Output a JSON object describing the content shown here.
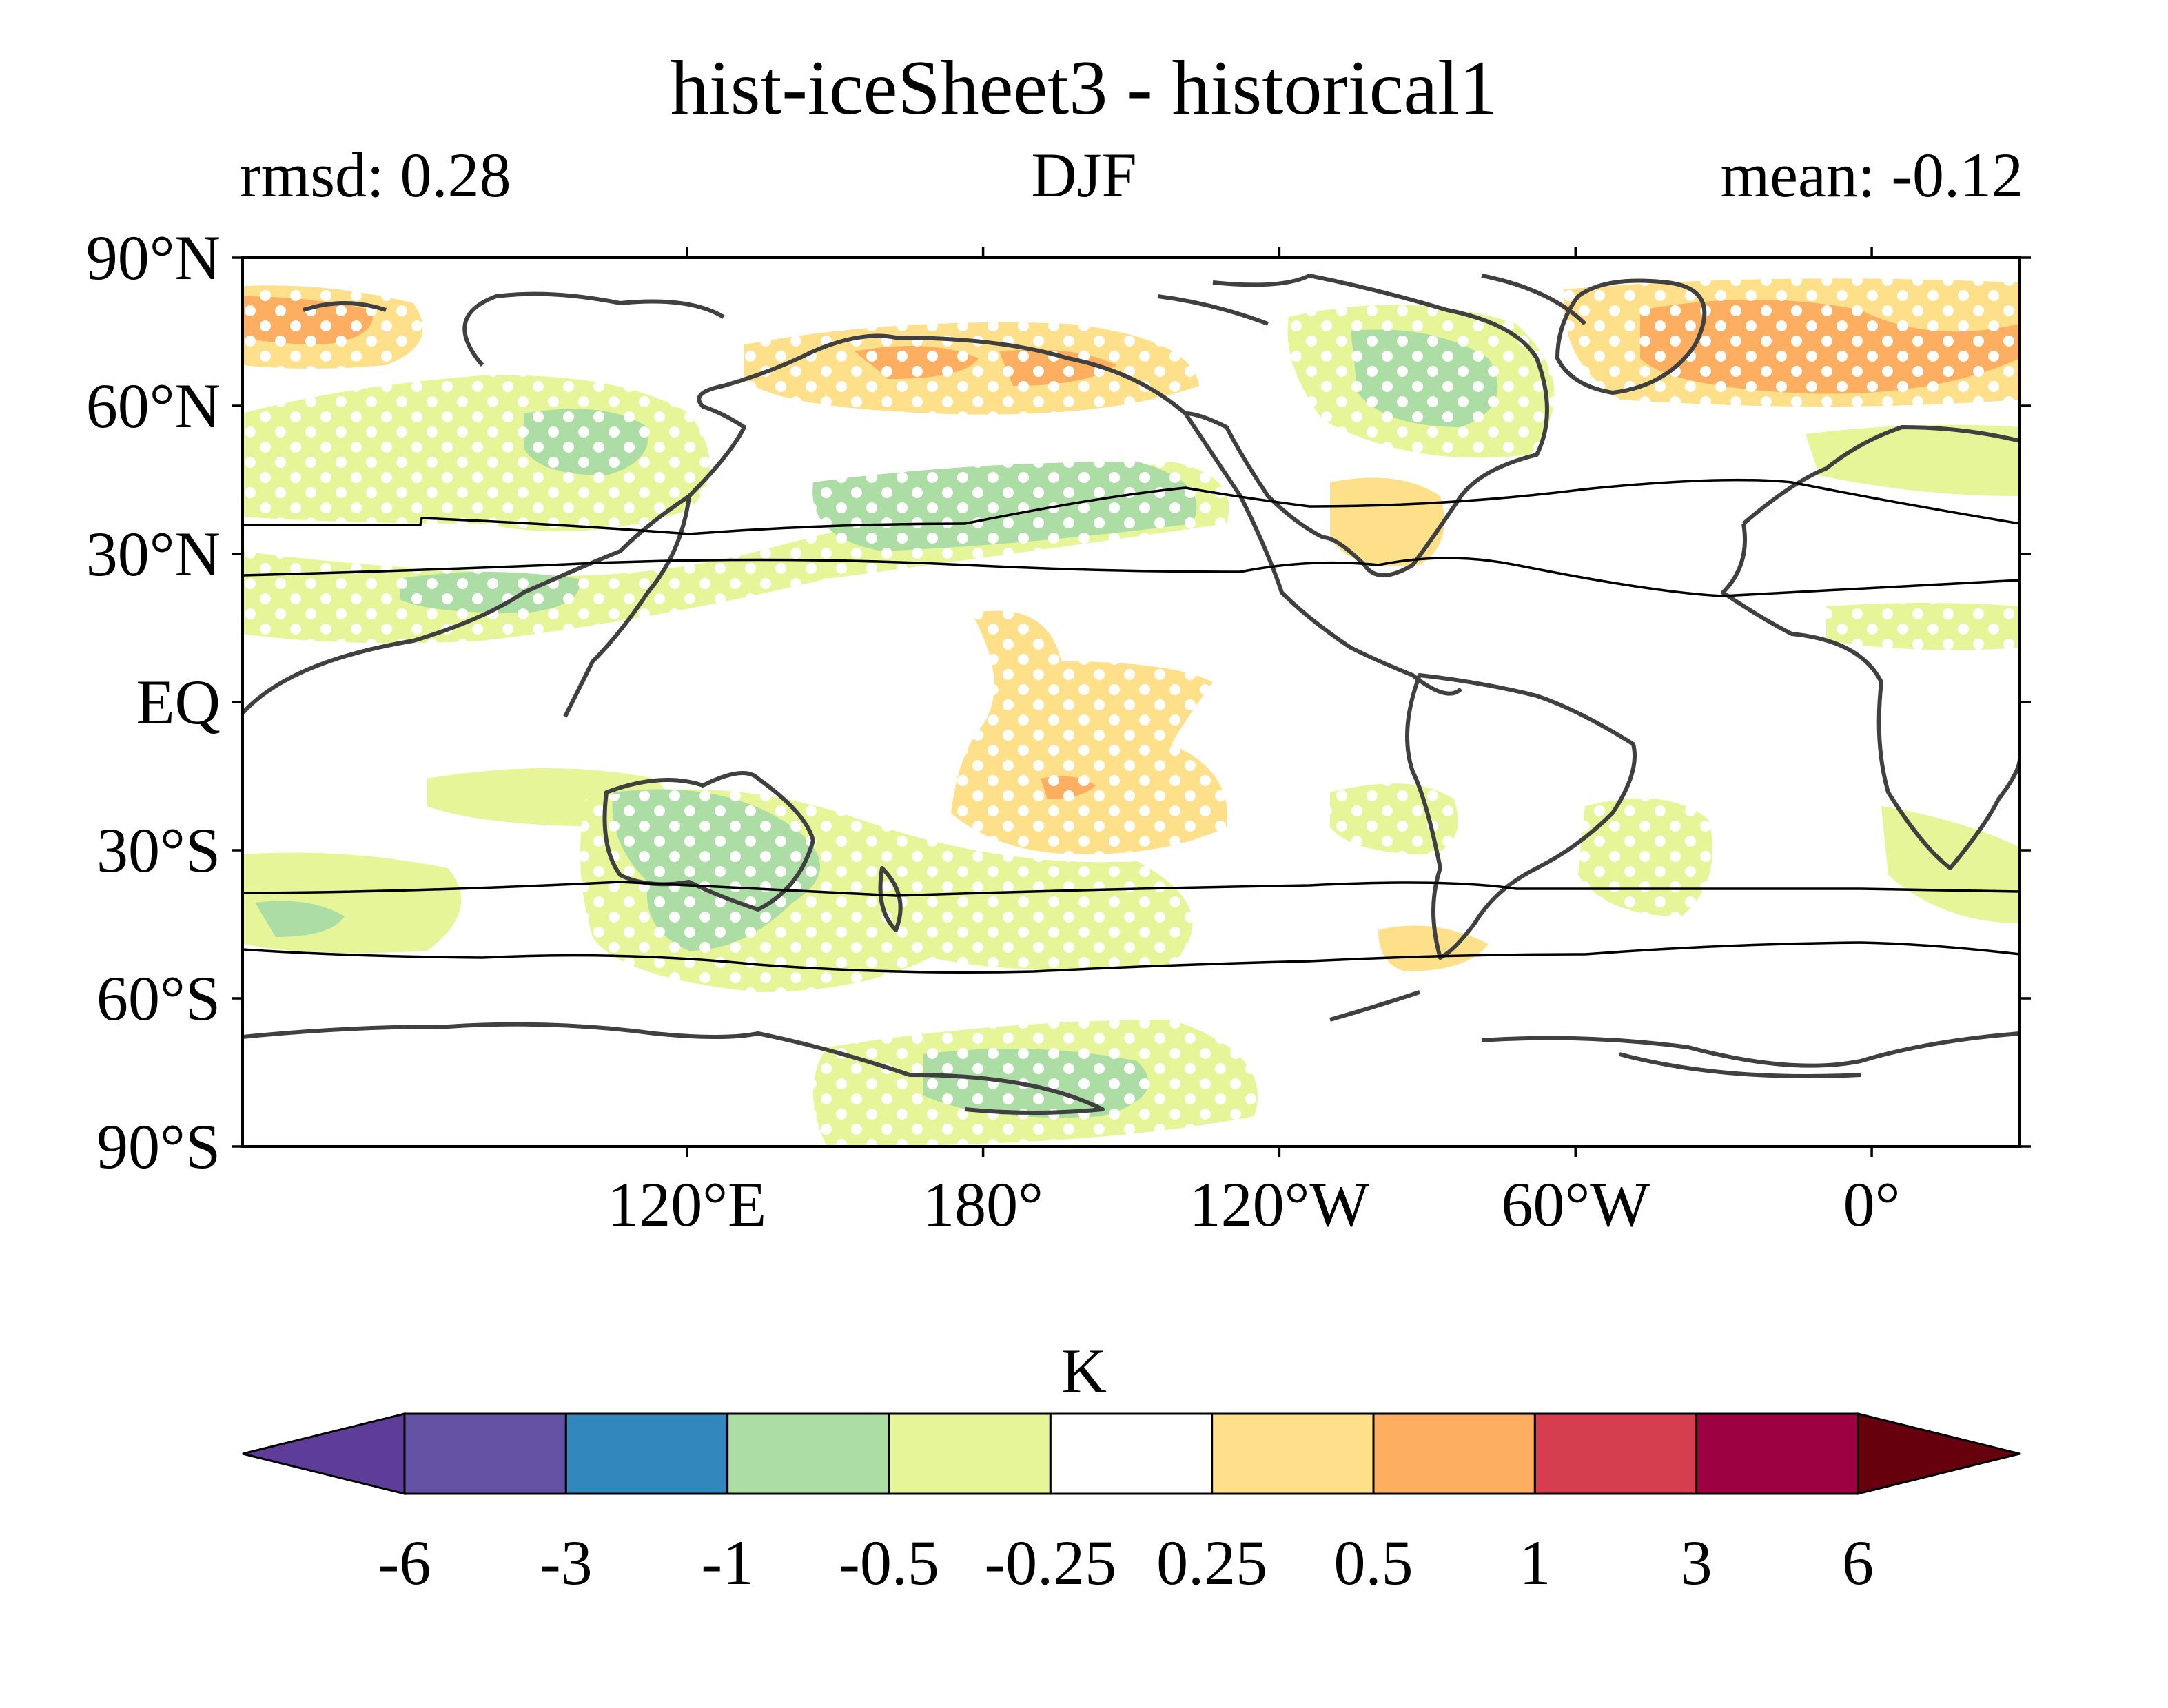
{
  "title": "hist-iceSheet3 - historical1",
  "subtitle_left": "rmsd: 0.28",
  "subtitle_center": "DJF",
  "subtitle_right": "mean: -0.12",
  "map": {
    "projection": "PlateCarree",
    "central_longitude": 180,
    "extent_lon": [
      0,
      360
    ],
    "extent_lat": [
      -90,
      90
    ],
    "lat_ticks": [
      {
        "value": 90,
        "label": "90°N"
      },
      {
        "value": 60,
        "label": "60°N"
      },
      {
        "value": 30,
        "label": "30°N"
      },
      {
        "value": 0,
        "label": "EQ"
      },
      {
        "value": -30,
        "label": "30°S"
      },
      {
        "value": -60,
        "label": "60°S"
      },
      {
        "value": -90,
        "label": "90°S"
      }
    ],
    "lon_ticks": [
      {
        "value": 120,
        "label": "120°E"
      },
      {
        "value": 180,
        "label": "180°"
      },
      {
        "value": 240,
        "label": "120°W"
      },
      {
        "value": 300,
        "label": "60°W"
      },
      {
        "value": 360,
        "label": "0°"
      }
    ],
    "stippling": "white dots",
    "field_colors": {
      "weak_negative": "#e6f598",
      "moderate_negative": "#abdda4",
      "weak_positive": "#fee08b",
      "moderate_positive": "#fdae61"
    }
  },
  "colorbar": {
    "label": "K",
    "extend": "both",
    "ticks": [
      "-6",
      "-3",
      "-1",
      "-0.5",
      "-0.25",
      "0.25",
      "0.5",
      "1",
      "3",
      "6"
    ],
    "colors": [
      "#5e3c99",
      "#6351a3",
      "#3288bd",
      "#abdda4",
      "#e6f598",
      "#ffffff",
      "#fee08b",
      "#fdae61",
      "#d53e4f",
      "#9e0142",
      "#67000d"
    ]
  }
}
